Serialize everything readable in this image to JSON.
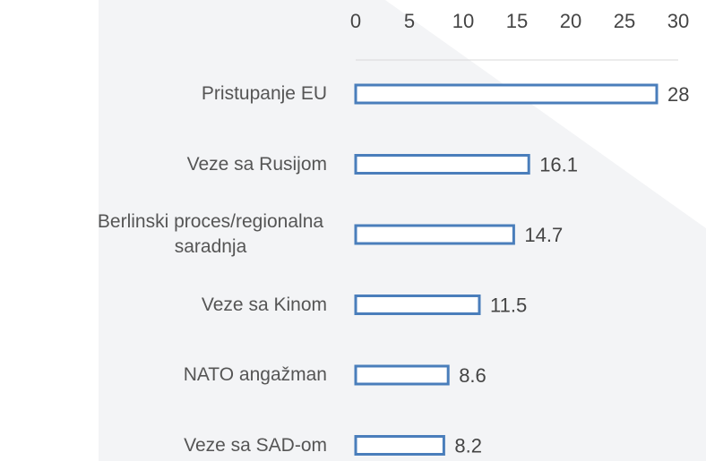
{
  "chart_data": {
    "type": "bar",
    "orientation": "horizontal",
    "categories": [
      "Pristupanje EU",
      "Veze sa Rusijom",
      "Berlinski proces/regionalna saradnja",
      "Veze sa Kinom",
      "NATO angažman",
      "Veze sa SAD-om"
    ],
    "values": [
      28,
      16.1,
      14.7,
      11.5,
      8.6,
      8.2
    ],
    "color": "#4a7ebb",
    "xlim": [
      0,
      30
    ],
    "xticks": [
      0,
      5,
      10,
      15,
      20,
      25,
      30
    ]
  }
}
